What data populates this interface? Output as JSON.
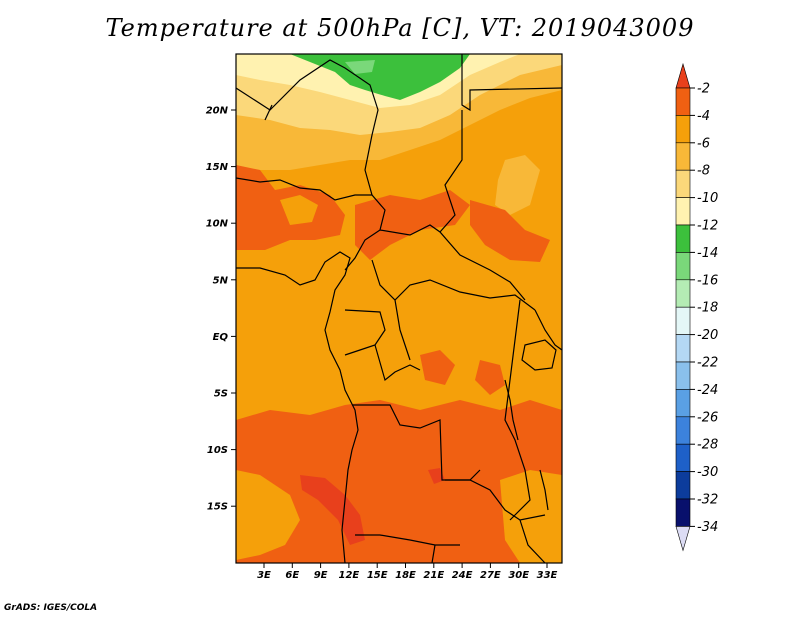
{
  "title": "Temperature at 500hPa [C], VT: 2019043009",
  "credit": "GrADS: IGES/COLA",
  "lat_ticks": [
    "20N",
    "15N",
    "10N",
    "5N",
    "EQ",
    "5S",
    "10S",
    "15S"
  ],
  "lon_ticks": [
    "3E",
    "6E",
    "9E",
    "12E",
    "15E",
    "18E",
    "21E",
    "24E",
    "27E",
    "30E",
    "33E"
  ],
  "colorbar": {
    "labels": [
      "-2",
      "-4",
      "-6",
      "-8",
      "-10",
      "-12",
      "-14",
      "-16",
      "-18",
      "-20",
      "-22",
      "-24",
      "-26",
      "-28",
      "-30",
      "-32",
      "-34"
    ],
    "colors": [
      "#e8401c",
      "#f06012",
      "#f5a00a",
      "#f8b838",
      "#fbd87a",
      "#fff2b0",
      "#3cc03c",
      "#7ad87a",
      "#b4ecb4",
      "#e4f7f7",
      "#b4d8f4",
      "#8ac0ec",
      "#5aa0e4",
      "#3c82dc",
      "#1e60c8",
      "#0c3c9c",
      "#08106c",
      "#dcdcf4"
    ]
  }
}
